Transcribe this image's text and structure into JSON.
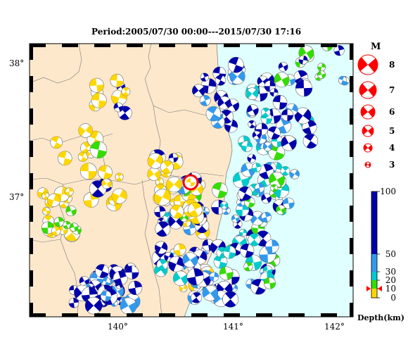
{
  "title": "Period:2005/07/30 00:00---2015/07/30 17:16",
  "lat_labels": [
    {
      "text": "38°",
      "lat": 38
    },
    {
      "text": "37°",
      "lat": 37
    }
  ],
  "lon_labels": [
    {
      "text": "140°",
      "lon": 140
    },
    {
      "text": "141°",
      "lon": 141
    },
    {
      "text": "142°",
      "lon": 142
    }
  ],
  "magnitude_legend": {
    "title": "M",
    "entries": [
      {
        "label": "8",
        "m": 8
      },
      {
        "label": "7",
        "m": 7
      },
      {
        "label": "6",
        "m": 6
      },
      {
        "label": "5",
        "m": 5
      },
      {
        "label": "4",
        "m": 4
      },
      {
        "label": "3",
        "m": 3
      }
    ],
    "color": "#ff0000"
  },
  "depth_legend": {
    "unit_label": "Depth(km)",
    "ticks": [
      {
        "label": "100",
        "depth": 100
      },
      {
        "label": "50",
        "depth": 50
      },
      {
        "label": "30",
        "depth": 30
      },
      {
        "label": "20",
        "depth": 20
      },
      {
        "label": "10",
        "depth": 10
      },
      {
        "label": "0",
        "depth": 0
      }
    ],
    "bands": [
      {
        "from": 0,
        "to": 10,
        "color": "#ffd700"
      },
      {
        "from": 10,
        "to": 20,
        "color": "#33dd00"
      },
      {
        "from": 20,
        "to": 30,
        "color": "#00cccc"
      },
      {
        "from": 30,
        "to": 50,
        "color": "#3399ee"
      },
      {
        "from": 50,
        "to": 100,
        "color": "#0000aa"
      }
    ],
    "marker_depth": 10,
    "marker_color": "#ff0000"
  },
  "colors": {
    "land": "#fde8cc",
    "sea": "#e0ffff",
    "frame": "#000000",
    "highlight": "#ff0000"
  }
}
